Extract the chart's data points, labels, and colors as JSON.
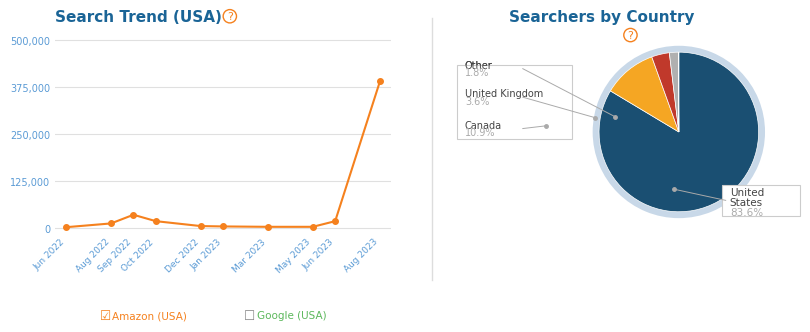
{
  "line_labels": [
    "Jun 2022",
    "Aug 2022",
    "Sep 2022",
    "Oct 2022",
    "Dec 2022",
    "Jan 2023",
    "Mar 2023",
    "May 2023",
    "Jun 2023",
    "Aug 2023"
  ],
  "line_x": [
    0,
    2,
    3,
    4,
    6,
    7,
    9,
    11,
    12,
    14
  ],
  "line_values": [
    2000,
    12000,
    35000,
    18000,
    5000,
    4000,
    3000,
    3000,
    18000,
    390000
  ],
  "line_color": "#f5811e",
  "line_title": "Search Trend (USA)",
  "line_title_color": "#1a6496",
  "ytick_labels": [
    "0",
    "125,000",
    "250,000",
    "375,000",
    "500,000"
  ],
  "ytick_values": [
    0,
    125000,
    250000,
    375000,
    500000
  ],
  "legend_amazon_color": "#f5811e",
  "legend_google_color": "#5cb85c",
  "bg_color": "#ffffff",
  "grid_color": "#e0e0e0",
  "tick_color": "#5b9bd5",
  "pie_title": "Searchers by Country",
  "pie_title_color": "#1a6496",
  "pie_slices": [
    83.6,
    10.9,
    3.6,
    1.8,
    0.1
  ],
  "pie_colors": [
    "#1a4f72",
    "#f5a623",
    "#c0392b",
    "#b0b0b0",
    "#adc8d8"
  ],
  "pie_labels": [
    "United States",
    "Canada",
    "United Kingdom",
    "Other",
    ""
  ],
  "pie_label_colors": [
    "#555555",
    "#555555",
    "#555555",
    "#555555",
    "#555555"
  ],
  "pie_pct_labels": [
    "83.6%",
    "10.9%",
    "3.6%",
    "1.8%",
    ""
  ],
  "annotation_color": "#777777",
  "question_mark_color": "#f5811e"
}
